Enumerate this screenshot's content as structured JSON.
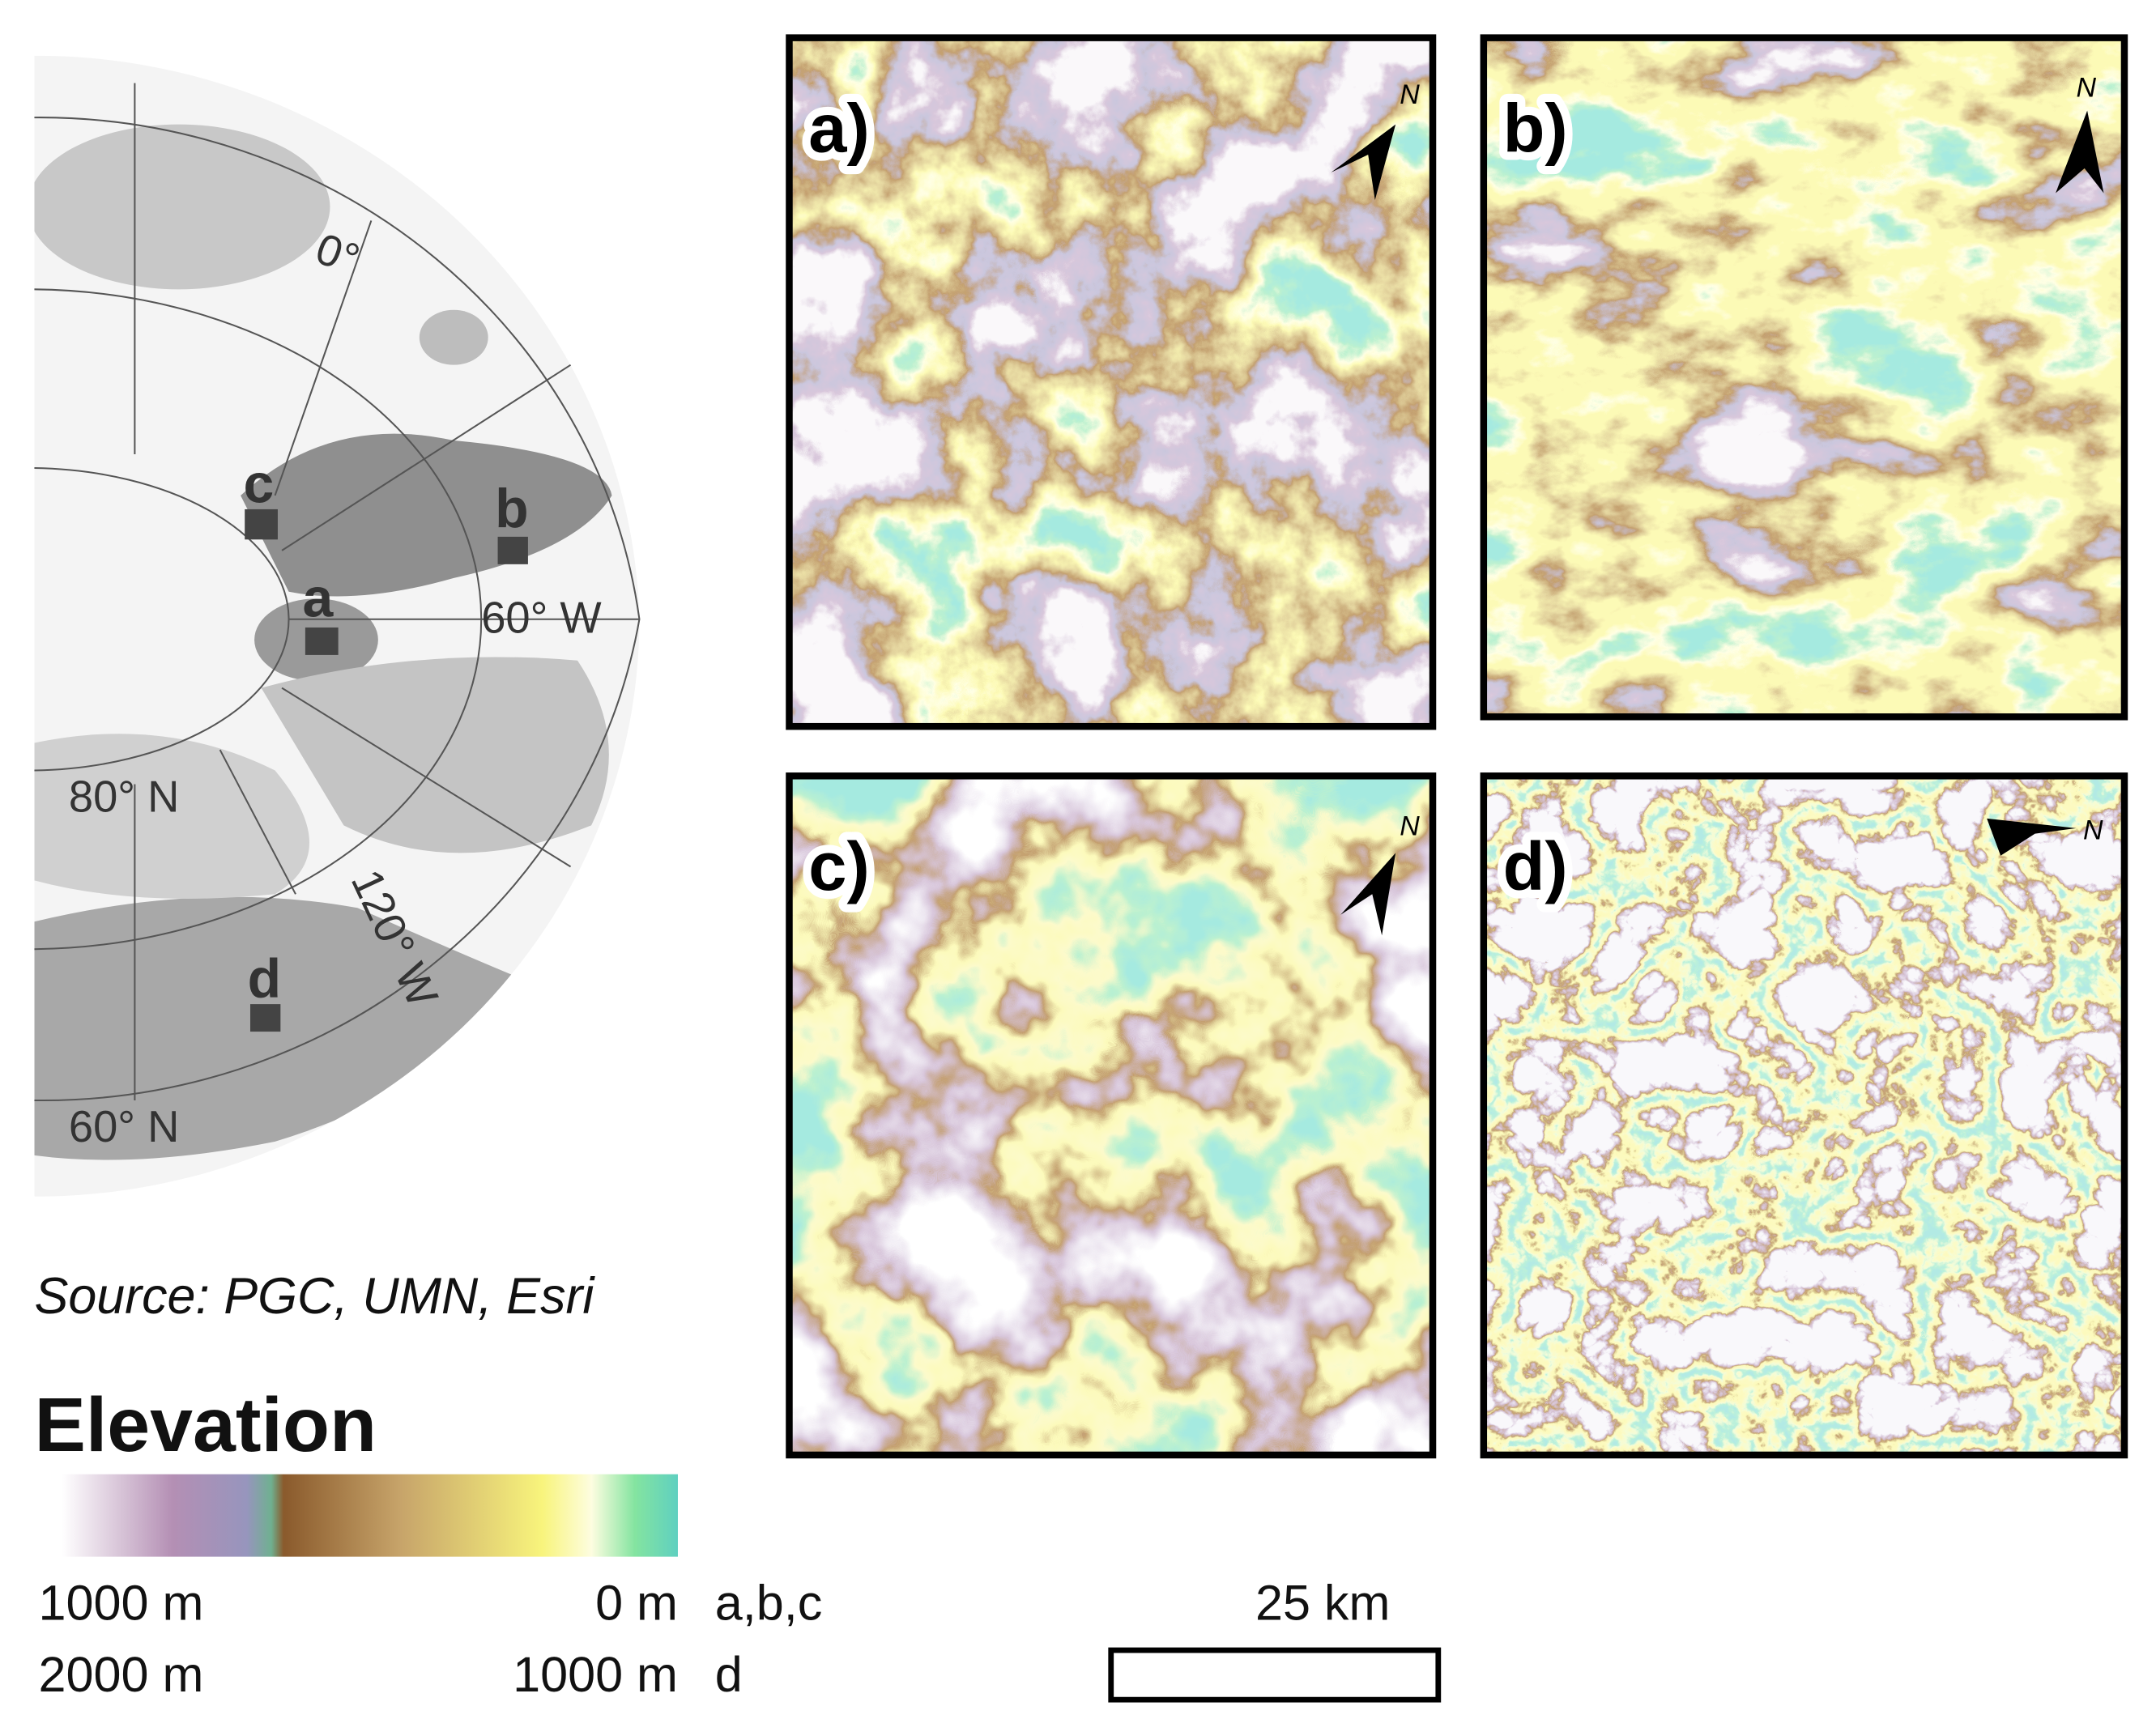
{
  "overview_map": {
    "graticule_labels": [
      "0°",
      "60° W",
      "80° N",
      "120° W",
      "60° N"
    ],
    "site_labels": [
      "a",
      "b",
      "c",
      "d"
    ]
  },
  "source": "Source: PGC, UMN, Esri",
  "legend": {
    "title": "Elevation",
    "rows": [
      {
        "min": "1000 m",
        "max": "0 m",
        "panels": "a,b,c"
      },
      {
        "min": "2000 m",
        "max": "1000 m",
        "panels": "d"
      }
    ]
  },
  "scale_bar": {
    "label": "25 km"
  },
  "panels": [
    {
      "label": "a)",
      "north": "N"
    },
    {
      "label": "b)",
      "north": "N"
    },
    {
      "label": "c)",
      "north": "N"
    },
    {
      "label": "d)",
      "north": "N"
    }
  ]
}
